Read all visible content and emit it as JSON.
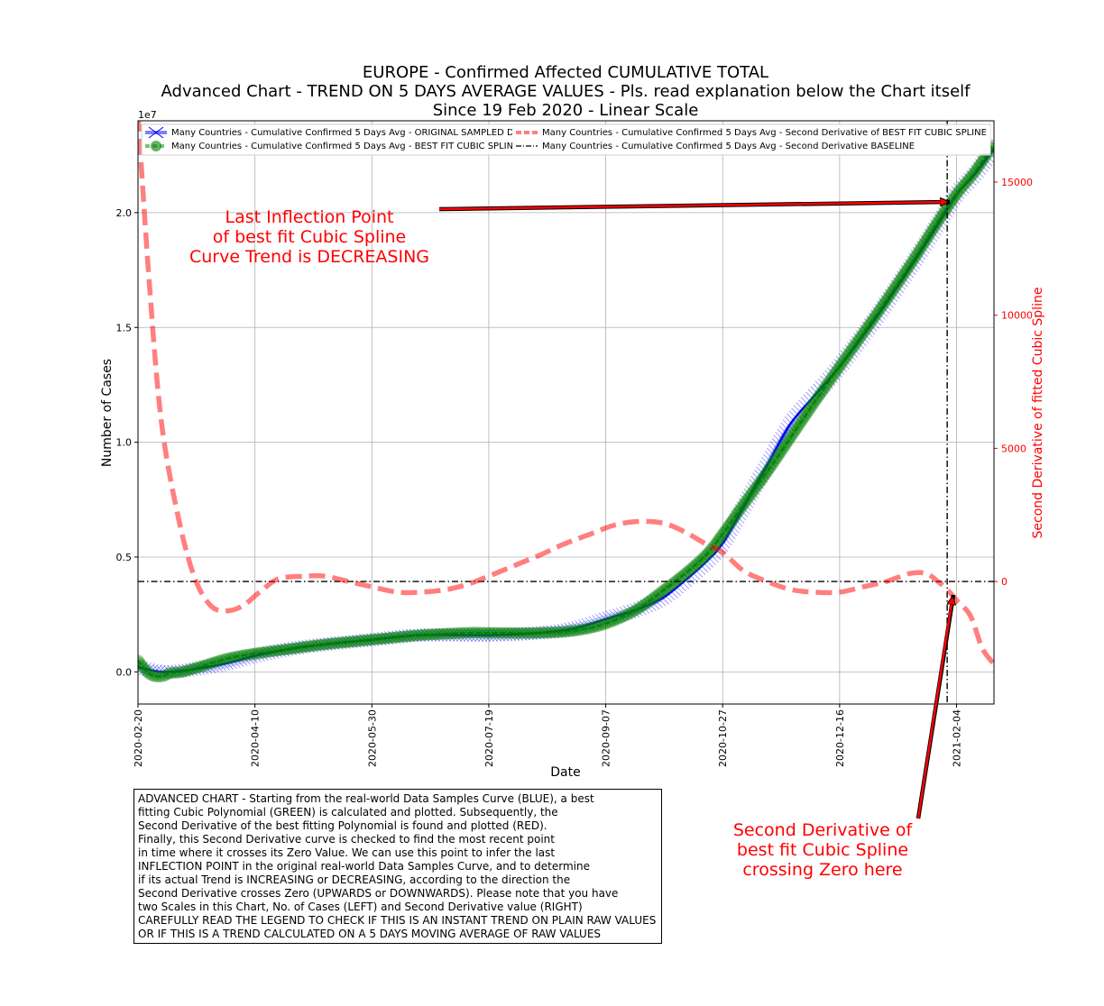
{
  "chart_data": {
    "type": "line",
    "title_lines": [
      "EUROPE - Confirmed Affected CUMULATIVE TOTAL",
      "Advanced Chart - TREND ON 5 DAYS AVERAGE VALUES - Pls. read explanation below the Chart itself",
      "Since 19 Feb 2020 - Linear Scale"
    ],
    "xlabel": "Date",
    "ylabel_left": "Number of Cases",
    "ylabel_right": "Second Derivative of fitted Cubic Spline",
    "left_axis_multiplier": "1e7",
    "x_range": [
      "2020-02-20",
      "2021-02-20"
    ],
    "x_ticks": [
      "2020-02-20",
      "2020-04-10",
      "2020-05-30",
      "2020-07-19",
      "2020-09-07",
      "2020-10-27",
      "2020-12-16",
      "2021-02-04"
    ],
    "ylim_left": [
      -0.14,
      2.4
    ],
    "yticks_left": [
      "0.0",
      "0.5",
      "1.0",
      "1.5",
      "2.0"
    ],
    "ylim_right": [
      -4600,
      17300
    ],
    "yticks_right": [
      "0",
      "5000",
      "10000",
      "15000"
    ],
    "grid": true,
    "legend_position": "top",
    "legend": [
      "Many Countries - Cumulative Confirmed 5 Days Avg - ORIGINAL SAMPLED DATA",
      "Many Countries - Cumulative Confirmed 5 Days Avg - BEST FIT CUBIC SPLINE",
      "Many Countries - Cumulative Confirmed 5 Days Avg - Second Derivative of BEST FIT CUBIC SPLINE",
      "Many Countries - Cumulative Confirmed 5 Days Avg - Second Derivative BASELINE"
    ],
    "series": [
      {
        "name": "Many Countries - Cumulative Confirmed 5 Days Avg - ORIGINAL SAMPLED DATA",
        "axis": "left",
        "color": "#0000ff",
        "x": [
          "2020-02-20",
          "2020-03-01",
          "2020-03-10",
          "2020-03-20",
          "2020-03-30",
          "2020-04-10",
          "2020-04-25",
          "2020-05-10",
          "2020-05-30",
          "2020-06-20",
          "2020-07-19",
          "2020-08-10",
          "2020-08-25",
          "2020-09-07",
          "2020-09-20",
          "2020-10-01",
          "2020-10-10",
          "2020-10-20",
          "2020-10-27",
          "2020-11-05",
          "2020-11-15",
          "2020-11-25",
          "2020-12-05",
          "2020-12-16",
          "2021-01-01",
          "2021-01-15",
          "2021-01-27",
          "2021-02-04",
          "2021-02-12",
          "2021-02-20"
        ],
        "values": [
          0.02,
          0.0,
          0.005,
          0.02,
          0.04,
          0.07,
          0.1,
          0.12,
          0.14,
          0.16,
          0.16,
          0.17,
          0.19,
          0.23,
          0.27,
          0.32,
          0.39,
          0.48,
          0.56,
          0.72,
          0.9,
          1.08,
          1.2,
          1.33,
          1.55,
          1.76,
          1.95,
          2.08,
          2.17,
          2.28
        ]
      },
      {
        "name": "Many Countries - Cumulative Confirmed 5 Days Avg - BEST FIT CUBIC SPLINE",
        "axis": "left",
        "color": "#008000",
        "x": [
          "2020-02-20",
          "2020-02-25",
          "2020-03-01",
          "2020-03-05",
          "2020-03-10",
          "2020-03-20",
          "2020-03-30",
          "2020-04-10",
          "2020-04-25",
          "2020-05-10",
          "2020-05-30",
          "2020-06-20",
          "2020-07-10",
          "2020-07-19",
          "2020-08-10",
          "2020-08-25",
          "2020-09-07",
          "2020-09-20",
          "2020-10-01",
          "2020-10-10",
          "2020-10-20",
          "2020-10-27",
          "2020-11-05",
          "2020-11-15",
          "2020-11-25",
          "2020-12-05",
          "2020-12-16",
          "2021-01-01",
          "2021-01-15",
          "2021-01-27",
          "2021-02-04",
          "2021-02-12",
          "2021-02-20"
        ],
        "values": [
          0.05,
          -0.01,
          -0.02,
          -0.005,
          0.0,
          0.03,
          0.06,
          0.08,
          0.1,
          0.12,
          0.14,
          0.16,
          0.17,
          0.17,
          0.17,
          0.18,
          0.21,
          0.27,
          0.35,
          0.42,
          0.51,
          0.6,
          0.73,
          0.87,
          1.02,
          1.17,
          1.33,
          1.56,
          1.77,
          1.96,
          2.08,
          2.18,
          2.3
        ]
      },
      {
        "name": "Many Countries - Cumulative Confirmed 5 Days Avg - Second Derivative of BEST FIT CUBIC SPLINE",
        "axis": "right",
        "color": "#ff0000",
        "x": [
          "2020-02-20",
          "2020-02-25",
          "2020-03-01",
          "2020-03-08",
          "2020-03-15",
          "2020-03-22",
          "2020-03-29",
          "2020-04-05",
          "2020-04-12",
          "2020-04-20",
          "2020-05-01",
          "2020-05-10",
          "2020-05-20",
          "2020-05-30",
          "2020-06-10",
          "2020-06-20",
          "2020-07-01",
          "2020-07-10",
          "2020-07-19",
          "2020-07-30",
          "2020-08-10",
          "2020-08-20",
          "2020-09-01",
          "2020-09-10",
          "2020-09-20",
          "2020-10-01",
          "2020-10-10",
          "2020-10-20",
          "2020-10-27",
          "2020-11-05",
          "2020-11-15",
          "2020-11-25",
          "2020-12-05",
          "2020-12-16",
          "2020-12-26",
          "2021-01-05",
          "2021-01-15",
          "2021-01-22",
          "2021-01-27",
          "2021-01-31",
          "2021-02-04",
          "2021-02-10",
          "2021-02-15",
          "2021-02-20"
        ],
        "values": [
          17500,
          11000,
          6000,
          2500,
          200,
          -900,
          -1100,
          -900,
          -400,
          100,
          200,
          200,
          0,
          -200,
          -400,
          -400,
          -300,
          -100,
          200,
          600,
          1000,
          1400,
          1800,
          2100,
          2250,
          2200,
          1900,
          1400,
          1100,
          400,
          0,
          -300,
          -400,
          -400,
          -200,
          0,
          300,
          300,
          0,
          -300,
          -700,
          -1300,
          -2500,
          -3100
        ]
      },
      {
        "name": "Many Countries - Cumulative Confirmed 5 Days Avg - Second Derivative BASELINE",
        "axis": "right",
        "color": "#000000",
        "x": [
          "2020-02-20",
          "2021-02-20"
        ],
        "values": [
          0,
          0
        ]
      }
    ],
    "inflection_date": "2021-01-31",
    "annotations": {
      "top": [
        "Last Inflection Point",
        "of best fit Cubic Spline",
        "Curve Trend is DECREASING"
      ],
      "bottom": [
        "Second Derivative of",
        "best fit Cubic Spline",
        "crossing Zero here"
      ]
    },
    "explanation_lines": [
      "ADVANCED CHART - Starting from the real-world Data Samples Curve (BLUE), a best",
      "fitting Cubic Polynomial (GREEN) is calculated and plotted. Subsequently, the",
      "Second Derivative of the best fitting Polynomial is found and plotted (RED).",
      "Finally, this Second Derivative curve is checked to find the most recent point",
      "in time where it crosses its Zero Value. We can use this point to infer the last",
      "INFLECTION POINT in the original real-world Data Samples Curve, and to determine",
      "if its actual Trend is INCREASING or DECREASING, according to the direction the",
      "Second Derivative crosses Zero (UPWARDS or DOWNWARDS). Please note that you have",
      "two Scales in this Chart, No. of Cases (LEFT) and Second Derivative value (RIGHT)",
      "CAREFULLY READ THE LEGEND TO CHECK IF THIS IS AN INSTANT TREND ON PLAIN RAW VALUES",
      "OR IF THIS IS A TREND CALCULATED ON A 5 DAYS MOVING AVERAGE OF RAW VALUES"
    ]
  }
}
